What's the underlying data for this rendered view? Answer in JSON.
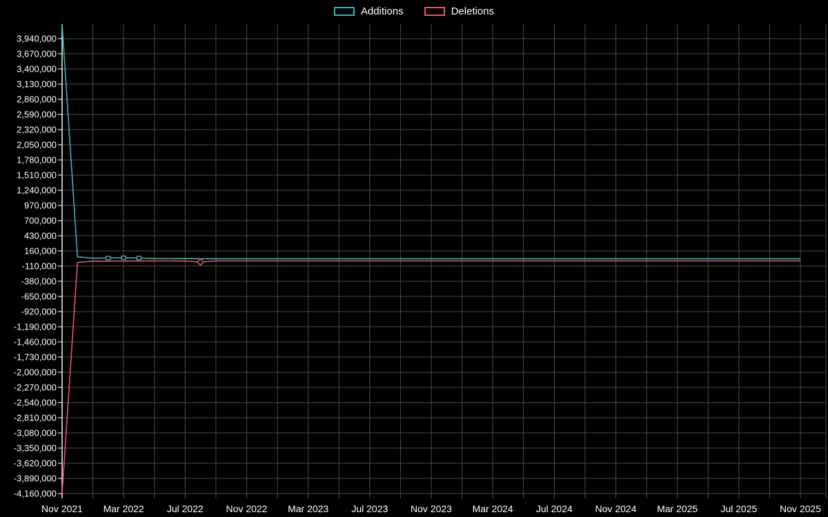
{
  "style": {
    "background": "#000000",
    "grid_color": "#4d4d4d",
    "axis_color": "#e8e8e8",
    "text_color": "#ffffff"
  },
  "chart_data": {
    "type": "line",
    "title": "",
    "legend_position": "top",
    "grid": true,
    "x": [
      "Nov 2021",
      "Dec 2021",
      "Jan 2022",
      "Feb 2022",
      "Mar 2022",
      "Apr 2022",
      "May 2022",
      "Jun 2022",
      "Jul 2022",
      "Aug 2022",
      "Sep 2022",
      "Oct 2022",
      "Nov 2022",
      "Dec 2022",
      "Jan 2023",
      "Feb 2023",
      "Mar 2023",
      "Apr 2023",
      "May 2023",
      "Jun 2023",
      "Jul 2023",
      "Aug 2023",
      "Sep 2023",
      "Oct 2023",
      "Nov 2023",
      "Dec 2023",
      "Jan 2024",
      "Feb 2024",
      "Mar 2024",
      "Apr 2024",
      "May 2024",
      "Jun 2024",
      "Jul 2024",
      "Aug 2024",
      "Sep 2024",
      "Oct 2024",
      "Nov 2024",
      "Dec 2024",
      "Jan 2025",
      "Feb 2025",
      "Mar 2025",
      "Apr 2025",
      "May 2025",
      "Jun 2025",
      "Jul 2025",
      "Aug 2025",
      "Sep 2025",
      "Oct 2025",
      "Nov 2025"
    ],
    "series": [
      {
        "name": "Additions",
        "color": "#3cb4b8",
        "values": [
          4200000,
          55000,
          30000,
          35000,
          38000,
          33000,
          25000,
          22000,
          24000,
          20000,
          20000,
          20000,
          20000,
          20000,
          20000,
          20000,
          20000,
          20000,
          20000,
          20000,
          20000,
          20000,
          20000,
          20000,
          20000,
          20000,
          20000,
          20000,
          20000,
          20000,
          20000,
          20000,
          20000,
          20000,
          20000,
          20000,
          20000,
          20000,
          20000,
          20000,
          20000,
          20000,
          20000,
          20000,
          20000,
          20000,
          20000,
          20000,
          20000
        ]
      },
      {
        "name": "Deletions",
        "color": "#e8566d",
        "values": [
          -4160000,
          -45000,
          -20000,
          -22000,
          -20000,
          -19000,
          -18000,
          -18000,
          -20000,
          -38000,
          -18000,
          -18000,
          -18000,
          -18000,
          -18000,
          -18000,
          -18000,
          -18000,
          -18000,
          -18000,
          -18000,
          -18000,
          -18000,
          -18000,
          -18000,
          -18000,
          -18000,
          -18000,
          -18000,
          -18000,
          -18000,
          -18000,
          -18000,
          -18000,
          -18000,
          -18000,
          -18000,
          -18000,
          -18000,
          -18000,
          -18000,
          -18000,
          -18000,
          -18000,
          -18000,
          -18000,
          -18000,
          -18000,
          -18000
        ]
      }
    ],
    "markers": [
      {
        "series": 0,
        "index": 3,
        "shape": "square"
      },
      {
        "series": 0,
        "index": 4,
        "shape": "square"
      },
      {
        "series": 0,
        "index": 5,
        "shape": "square"
      },
      {
        "series": 1,
        "index": 9,
        "shape": "diamond"
      }
    ],
    "y_ticks": [
      3940000,
      3670000,
      3400000,
      3130000,
      2860000,
      2590000,
      2320000,
      2050000,
      1780000,
      1510000,
      1240000,
      970000,
      700000,
      430000,
      160000,
      -110000,
      -380000,
      -650000,
      -920000,
      -1190000,
      -1460000,
      -1730000,
      -2000000,
      -2270000,
      -2540000,
      -2810000,
      -3080000,
      -3350000,
      -3620000,
      -3890000,
      -4160000
    ],
    "x_tick_labels": [
      "Nov 2021",
      "Mar 2022",
      "Jul 2022",
      "Nov 2022",
      "Mar 2023",
      "Jul 2023",
      "Nov 2023",
      "Mar 2024",
      "Jul 2024",
      "Nov 2024",
      "Mar 2025",
      "Jul 2025",
      "Nov 2025"
    ],
    "x_tick_every": 4,
    "ylim": [
      -4160000,
      4200000
    ]
  }
}
